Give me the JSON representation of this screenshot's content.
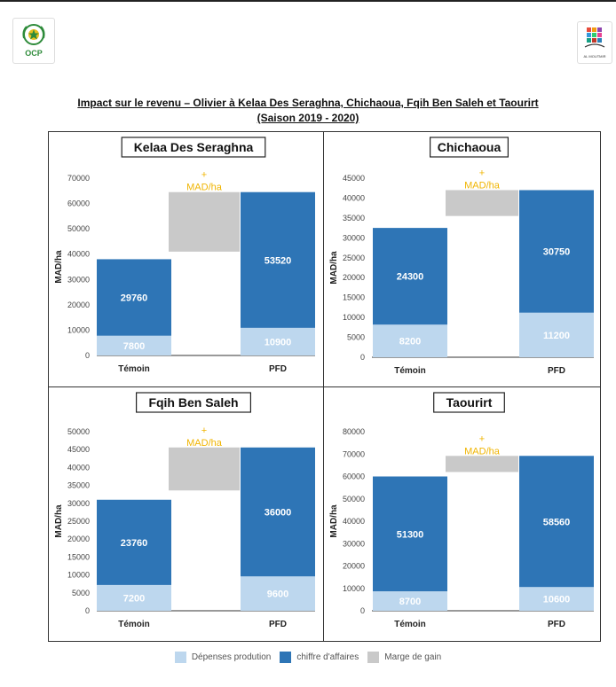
{
  "header": {
    "ocp_logo_text": "OCP",
    "right_logo_text": "AL MOUTMIR"
  },
  "title": {
    "line1": "Impact sur le revenu – Olivier  à Kelaa Des Seraghna, Chichaoua, Fqih Ben Saleh et Taourirt",
    "line2": "(Saison 2019 - 2020)"
  },
  "legend": [
    {
      "label": "Dépenses prodution",
      "color": "#bdd7ee"
    },
    {
      "label": "chiffre d'affaires",
      "color": "#2e75b6"
    },
    {
      "label": "Marge de gain",
      "color": "#c9c9c9"
    }
  ],
  "chart_data": [
    {
      "type": "bar",
      "title": "Kelaa Des Seraghna",
      "ylabel": "MAD/ha",
      "ylim": [
        0,
        70000
      ],
      "yticks": [
        "0",
        "10000",
        "20000",
        "30000",
        "40000",
        "50000",
        "60000",
        "70000"
      ],
      "categories": [
        "Témoin",
        "PFD"
      ],
      "depenses": [
        7800,
        10900
      ],
      "chiffre_affaires_labels": [
        29760,
        53520
      ],
      "totals": [
        38000,
        64500
      ],
      "marge": {
        "from": 41000,
        "to": 64500,
        "label_plus": "+",
        "label_unit": "MAD/ha"
      }
    },
    {
      "type": "bar",
      "title": "Chichaoua",
      "ylabel": "MAD/ha",
      "ylim": [
        0,
        45000
      ],
      "yticks": [
        "0",
        "5000",
        "10000",
        "15000",
        "20000",
        "25000",
        "30000",
        "35000",
        "40000",
        "45000"
      ],
      "categories": [
        "Témoin",
        "PFD"
      ],
      "depenses": [
        8200,
        11200
      ],
      "chiffre_affaires_labels": [
        24300,
        30750
      ],
      "totals": [
        32500,
        42000
      ],
      "marge": {
        "from": 35500,
        "to": 42000,
        "label_plus": "+",
        "label_unit": "MAD/ha"
      }
    },
    {
      "type": "bar",
      "title": "Fqih Ben Saleh",
      "ylabel": "MAD/ha",
      "ylim": [
        0,
        50000
      ],
      "yticks": [
        "0",
        "5000",
        "10000",
        "15000",
        "20000",
        "25000",
        "30000",
        "35000",
        "40000",
        "45000",
        "50000"
      ],
      "categories": [
        "Témoin",
        "PFD"
      ],
      "depenses": [
        7200,
        9600
      ],
      "chiffre_affaires_labels": [
        23760,
        36000
      ],
      "totals": [
        31000,
        45600
      ],
      "marge": {
        "from": 33600,
        "to": 45600,
        "label_plus": "+",
        "label_unit": "MAD/ha"
      }
    },
    {
      "type": "bar",
      "title": "Taourirt",
      "ylabel": "MAD/ha",
      "ylim": [
        0,
        80000
      ],
      "yticks": [
        "0",
        "10000",
        "20000",
        "30000",
        "40000",
        "50000",
        "60000",
        "70000",
        "80000"
      ],
      "categories": [
        "Témoin",
        "PFD"
      ],
      "depenses": [
        8700,
        10600
      ],
      "chiffre_affaires_labels": [
        51300,
        58560
      ],
      "totals": [
        60000,
        69200
      ],
      "marge": {
        "from": 62000,
        "to": 69200,
        "label_plus": "+",
        "label_unit": "MAD/ha"
      }
    }
  ]
}
